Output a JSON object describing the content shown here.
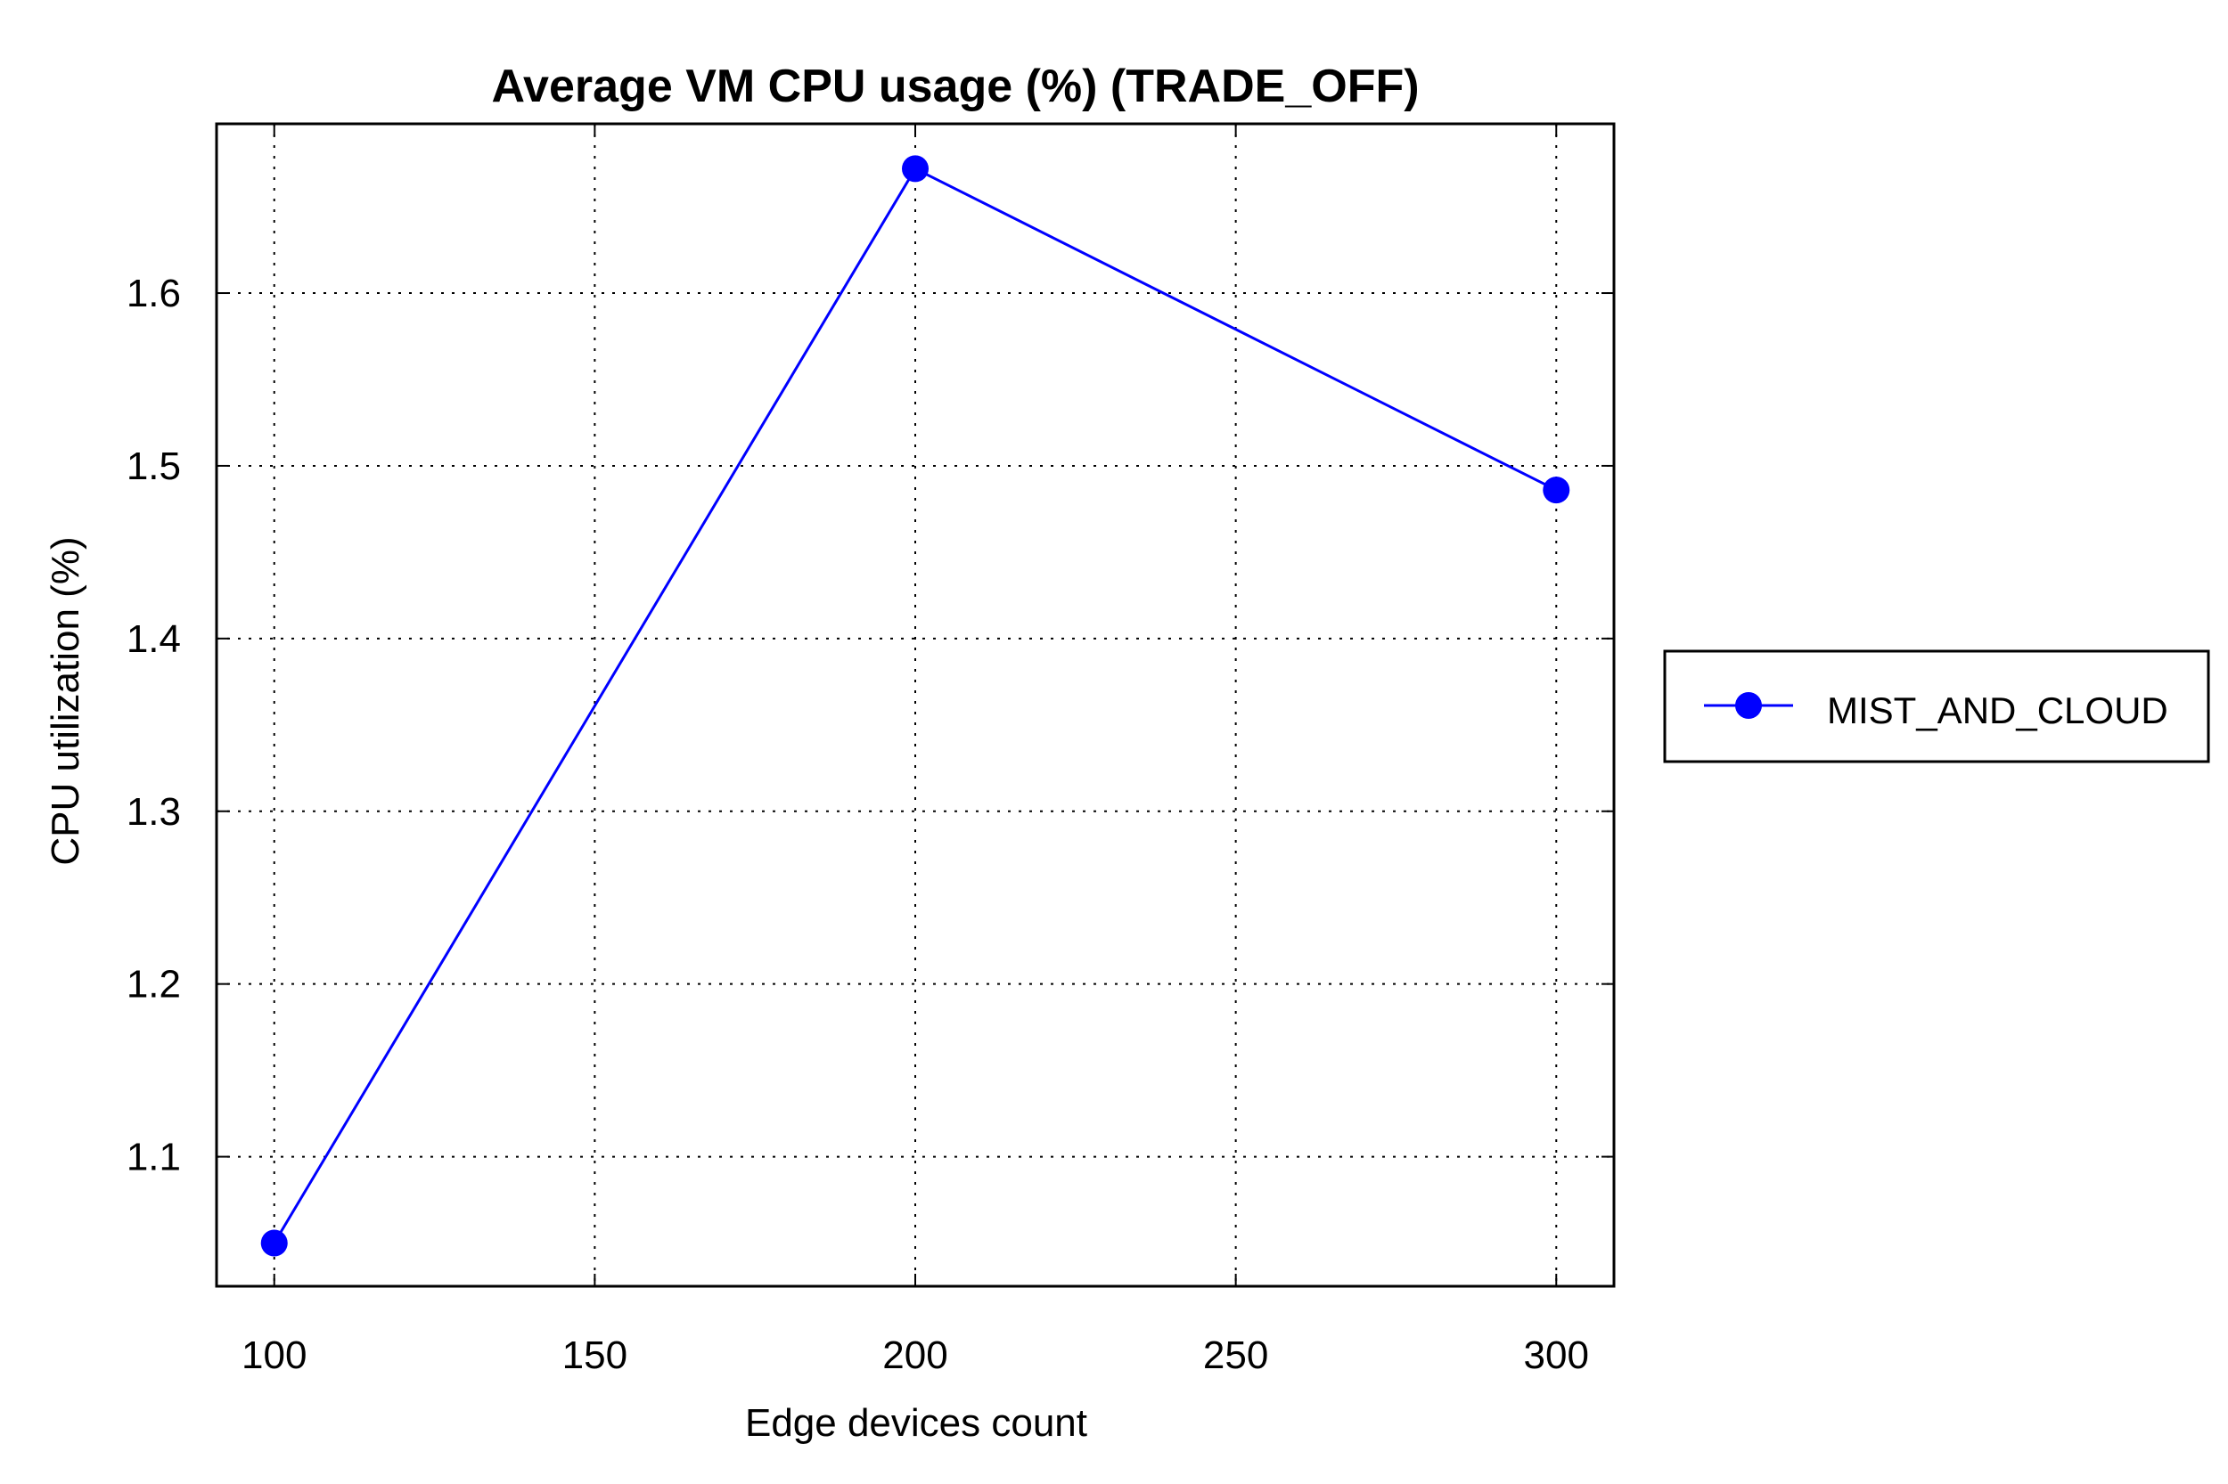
{
  "chart_data": {
    "type": "line",
    "title": "Average VM CPU usage (%) (TRADE_OFF)",
    "xlabel": "Edge devices count",
    "ylabel": "CPU utilization (%)",
    "x": [
      100,
      200,
      300
    ],
    "xlim": [
      91,
      309
    ],
    "ylim": [
      1.025,
      1.698
    ],
    "xticks": [
      100,
      150,
      200,
      250,
      300
    ],
    "xtick_labels": [
      "100",
      "150",
      "200",
      "250",
      "300"
    ],
    "yticks": [
      1.1,
      1.2,
      1.3,
      1.4,
      1.5,
      1.6
    ],
    "ytick_labels": [
      "1.1",
      "1.2",
      "1.3",
      "1.4",
      "1.5",
      "1.6"
    ],
    "grid": true,
    "legend_position": "right",
    "series": [
      {
        "name": "MIST_AND_CLOUD",
        "color": "#0000ff",
        "marker": "circle",
        "values": [
          1.05,
          1.672,
          1.486
        ]
      }
    ]
  }
}
